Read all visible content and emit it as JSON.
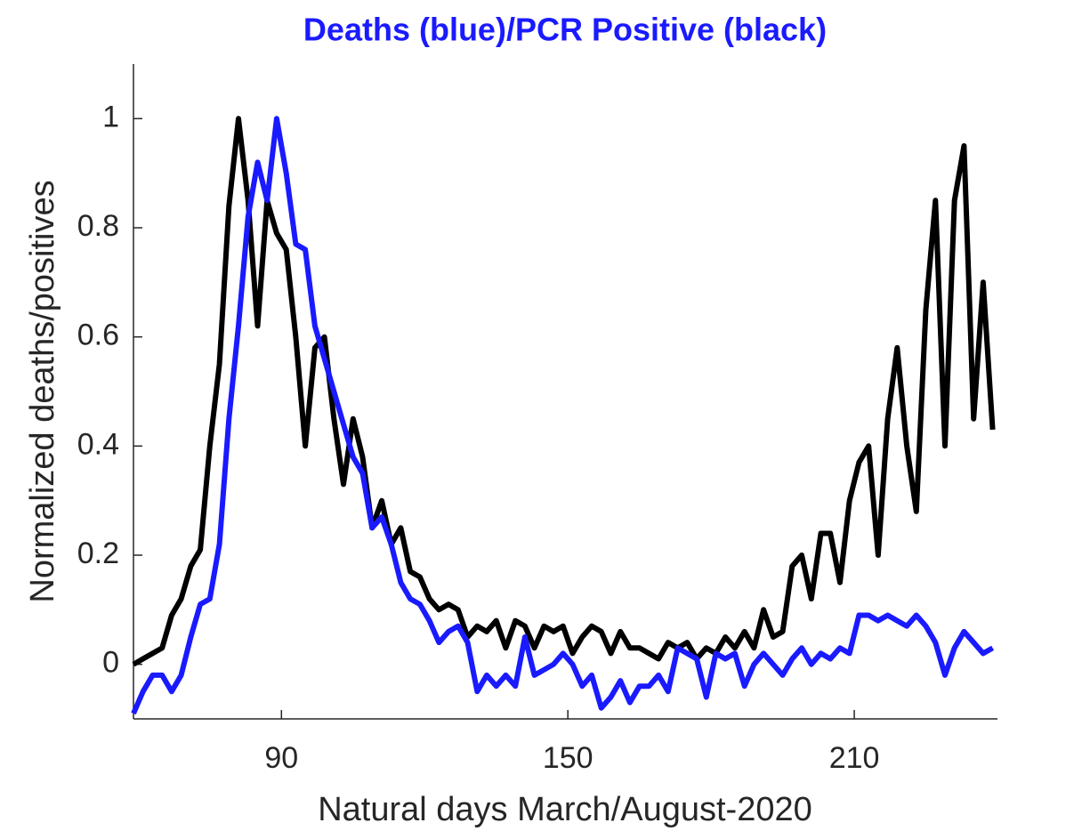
{
  "chart_data": {
    "type": "line",
    "title": "Deaths (blue)/PCR Positive (black)",
    "xlabel": "Natural days March/August-2020",
    "ylabel": "Normalized deaths/positives",
    "x": [
      59,
      61,
      63,
      65,
      67,
      69,
      71,
      73,
      75,
      77,
      79,
      81,
      83,
      85,
      87,
      89,
      91,
      93,
      95,
      97,
      99,
      101,
      103,
      105,
      107,
      109,
      111,
      113,
      115,
      117,
      119,
      121,
      123,
      125,
      127,
      129,
      131,
      133,
      135,
      137,
      139,
      141,
      143,
      145,
      147,
      149,
      151,
      153,
      155,
      157,
      159,
      161,
      163,
      165,
      167,
      169,
      171,
      173,
      175,
      177,
      179,
      181,
      183,
      185,
      187,
      189,
      191,
      193,
      195,
      197,
      199,
      201,
      203,
      205,
      207,
      209,
      211,
      213,
      215,
      217,
      219,
      221,
      223,
      225,
      227,
      229,
      231,
      233,
      235,
      237,
      239
    ],
    "series": [
      {
        "color": "#000000",
        "values": [
          0,
          0.01,
          0.02,
          0.03,
          0.09,
          0.12,
          0.18,
          0.21,
          0.4,
          0.55,
          0.84,
          1.0,
          0.85,
          0.62,
          0.85,
          0.79,
          0.76,
          0.6,
          0.4,
          0.58,
          0.6,
          0.45,
          0.33,
          0.45,
          0.38,
          0.25,
          0.3,
          0.22,
          0.25,
          0.17,
          0.16,
          0.12,
          0.1,
          0.11,
          0.1,
          0.05,
          0.07,
          0.06,
          0.08,
          0.03,
          0.08,
          0.07,
          0.03,
          0.07,
          0.06,
          0.07,
          0.02,
          0.05,
          0.07,
          0.06,
          0.02,
          0.06,
          0.03,
          0.03,
          0.02,
          0.01,
          0.04,
          0.03,
          0.04,
          0.01,
          0.03,
          0.02,
          0.05,
          0.03,
          0.06,
          0.03,
          0.1,
          0.05,
          0.06,
          0.18,
          0.2,
          0.12,
          0.24,
          0.24,
          0.15,
          0.3,
          0.37,
          0.4,
          0.2,
          0.45,
          0.58,
          0.4,
          0.28,
          0.65,
          0.85,
          0.4,
          0.85,
          0.95,
          0.45,
          0.7,
          0.43
        ]
      },
      {
        "color": "#1a1aff",
        "values": [
          -0.09,
          -0.05,
          -0.02,
          -0.02,
          -0.05,
          -0.02,
          0.05,
          0.11,
          0.12,
          0.22,
          0.45,
          0.62,
          0.82,
          0.92,
          0.85,
          1.0,
          0.9,
          0.77,
          0.76,
          0.62,
          0.56,
          0.5,
          0.44,
          0.38,
          0.35,
          0.25,
          0.27,
          0.22,
          0.15,
          0.12,
          0.11,
          0.08,
          0.04,
          0.06,
          0.07,
          0.04,
          -0.05,
          -0.02,
          -0.04,
          -0.02,
          -0.04,
          0.05,
          -0.02,
          -0.01,
          0,
          0.02,
          0,
          -0.04,
          -0.02,
          -0.08,
          -0.06,
          -0.03,
          -0.07,
          -0.04,
          -0.04,
          -0.02,
          -0.05,
          0.03,
          0.02,
          0.01,
          -0.06,
          0.02,
          0.01,
          0.02,
          -0.04,
          0,
          0.02,
          0,
          -0.02,
          0.01,
          0.03,
          0,
          0.02,
          0.01,
          0.03,
          0.02,
          0.09,
          0.09,
          0.08,
          0.09,
          0.08,
          0.07,
          0.09,
          0.07,
          0.04,
          -0.02,
          0.03,
          0.06,
          0.04,
          0.02,
          0.03
        ]
      }
    ],
    "xlim": [
      59,
      240
    ],
    "xticks": [
      90,
      150,
      210
    ],
    "ylim": [
      -0.1,
      1.1
    ],
    "yticks": [
      0,
      0.2,
      0.4,
      0.6,
      0.8,
      1
    ],
    "title_color": "#1a1aff",
    "grid": false
  }
}
